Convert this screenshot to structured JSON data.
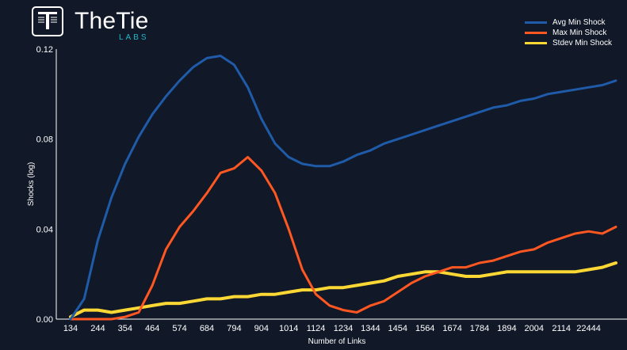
{
  "brand": {
    "name": "TheTie",
    "sub": "LABS"
  },
  "colors": {
    "background": "#111827",
    "avg": "#1f5ba8",
    "max": "#ff5722",
    "stdev": "#fdd835",
    "axis": "#ffffff"
  },
  "chart_data": {
    "type": "line",
    "title": "",
    "xlabel": "Number of Links",
    "ylabel": "Shocks (log)",
    "xlim": [
      80,
      22540
    ],
    "ylim": [
      0.0,
      0.12
    ],
    "x_ticks": [
      "134",
      "244",
      "354",
      "464",
      "574",
      "684",
      "794",
      "904",
      "1014",
      "1124",
      "1234",
      "1344",
      "1454",
      "1564",
      "1674",
      "1784",
      "1894",
      "2004",
      "2114",
      "22444"
    ],
    "y_ticks": [
      "0.00",
      "0.04",
      "0.08",
      "0.12"
    ],
    "y_tick_values": [
      0.0,
      0.04,
      0.08,
      0.12
    ],
    "legend_position": "top-right",
    "x_index": [
      0,
      0.5,
      1,
      1.5,
      2,
      2.5,
      3,
      3.5,
      4,
      4.5,
      5,
      5.5,
      6,
      6.5,
      7,
      7.5,
      8,
      8.5,
      9,
      9.5,
      10,
      10.5,
      11,
      11.5,
      12,
      12.5,
      13,
      13.5,
      14,
      14.5,
      15,
      15.5,
      16,
      16.5,
      17,
      17.5,
      18,
      18.5,
      19,
      19.5,
      20
    ],
    "series": [
      {
        "name": "Avg Min Shock",
        "color": "#1f5ba8",
        "values": [
          0.0,
          0.009,
          0.035,
          0.054,
          0.069,
          0.081,
          0.091,
          0.099,
          0.106,
          0.112,
          0.116,
          0.117,
          0.113,
          0.103,
          0.089,
          0.078,
          0.072,
          0.069,
          0.068,
          0.068,
          0.07,
          0.073,
          0.075,
          0.078,
          0.08,
          0.082,
          0.084,
          0.086,
          0.088,
          0.09,
          0.092,
          0.094,
          0.095,
          0.097,
          0.098,
          0.1,
          0.101,
          0.102,
          0.103,
          0.104,
          0.106
        ]
      },
      {
        "name": "Max Min Shock",
        "color": "#ff5722",
        "values": [
          0.0,
          0.0,
          0.0,
          0.0,
          0.001,
          0.003,
          0.015,
          0.031,
          0.041,
          0.048,
          0.056,
          0.065,
          0.067,
          0.072,
          0.066,
          0.056,
          0.04,
          0.022,
          0.011,
          0.006,
          0.004,
          0.003,
          0.006,
          0.008,
          0.012,
          0.016,
          0.019,
          0.021,
          0.023,
          0.023,
          0.025,
          0.026,
          0.028,
          0.03,
          0.031,
          0.034,
          0.036,
          0.038,
          0.039,
          0.038,
          0.041
        ]
      },
      {
        "name": "Stdev Min Shock",
        "color": "#fdd835",
        "values": [
          0.001,
          0.004,
          0.004,
          0.003,
          0.004,
          0.005,
          0.006,
          0.007,
          0.007,
          0.008,
          0.009,
          0.009,
          0.01,
          0.01,
          0.011,
          0.011,
          0.012,
          0.013,
          0.013,
          0.014,
          0.014,
          0.015,
          0.016,
          0.017,
          0.019,
          0.02,
          0.021,
          0.021,
          0.02,
          0.019,
          0.019,
          0.02,
          0.021,
          0.021,
          0.021,
          0.021,
          0.021,
          0.021,
          0.022,
          0.023,
          0.025
        ]
      }
    ]
  }
}
